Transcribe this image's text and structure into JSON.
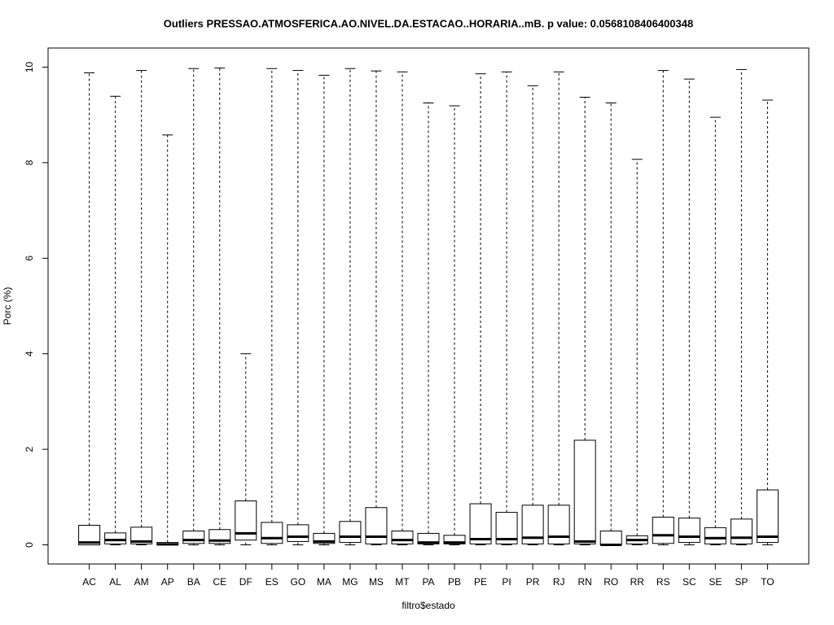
{
  "chart_data": {
    "type": "boxplot",
    "title": "Outliers PRESSAO.ATMOSFERICA.AO.NIVEL.DA.ESTACAO..HORARIA..mB. p value: 0.0568108406400348",
    "x_label": "filtro$estado",
    "y_label": "Porc (%)",
    "categories": [
      "AC",
      "AL",
      "AM",
      "AP",
      "BA",
      "CE",
      "DF",
      "ES",
      "GO",
      "MA",
      "MG",
      "MS",
      "MT",
      "PA",
      "PB",
      "PE",
      "PI",
      "PR",
      "RJ",
      "RN",
      "RO",
      "RR",
      "RS",
      "SC",
      "SE",
      "SP",
      "TO"
    ],
    "boxes": [
      {
        "min": 0,
        "q1": 0,
        "median": 0.05,
        "q3": 0.41,
        "max": 9.88
      },
      {
        "min": 0,
        "q1": 0.02,
        "median": 0.1,
        "q3": 0.25,
        "max": 9.39
      },
      {
        "min": 0,
        "q1": 0.02,
        "median": 0.07,
        "q3": 0.37,
        "max": 9.93
      },
      {
        "min": 0,
        "q1": 0,
        "median": 0.01,
        "q3": 0.05,
        "max": 8.58
      },
      {
        "min": 0,
        "q1": 0.03,
        "median": 0.1,
        "q3": 0.29,
        "max": 9.97
      },
      {
        "min": 0,
        "q1": 0.03,
        "median": 0.09,
        "q3": 0.32,
        "max": 9.98
      },
      {
        "min": 0,
        "q1": 0.1,
        "median": 0.24,
        "q3": 0.92,
        "max": 4.0
      },
      {
        "min": 0,
        "q1": 0.03,
        "median": 0.14,
        "q3": 0.47,
        "max": 9.97
      },
      {
        "min": 0,
        "q1": 0.07,
        "median": 0.17,
        "q3": 0.42,
        "max": 9.93
      },
      {
        "min": 0,
        "q1": 0.03,
        "median": 0.07,
        "q3": 0.24,
        "max": 9.83
      },
      {
        "min": 0,
        "q1": 0.05,
        "median": 0.17,
        "q3": 0.49,
        "max": 9.97
      },
      {
        "min": 0,
        "q1": 0.02,
        "median": 0.17,
        "q3": 0.78,
        "max": 9.92
      },
      {
        "min": 0,
        "q1": 0.02,
        "median": 0.1,
        "q3": 0.29,
        "max": 9.9
      },
      {
        "min": 0,
        "q1": 0.02,
        "median": 0.05,
        "q3": 0.24,
        "max": 9.25
      },
      {
        "min": 0,
        "q1": 0.02,
        "median": 0.05,
        "q3": 0.2,
        "max": 9.19
      },
      {
        "min": 0,
        "q1": 0.02,
        "median": 0.12,
        "q3": 0.86,
        "max": 9.86
      },
      {
        "min": 0,
        "q1": 0.02,
        "median": 0.12,
        "q3": 0.68,
        "max": 9.9
      },
      {
        "min": 0,
        "q1": 0.02,
        "median": 0.15,
        "q3": 0.83,
        "max": 9.61
      },
      {
        "min": 0,
        "q1": 0.02,
        "median": 0.17,
        "q3": 0.83,
        "max": 9.9
      },
      {
        "min": 0,
        "q1": 0.02,
        "median": 0.07,
        "q3": 2.19,
        "max": 9.37
      },
      {
        "min": 0,
        "q1": 0,
        "median": 0,
        "q3": 0.29,
        "max": 9.25
      },
      {
        "min": 0,
        "q1": 0.02,
        "median": 0.1,
        "q3": 0.19,
        "max": 8.07
      },
      {
        "min": 0,
        "q1": 0.03,
        "median": 0.2,
        "q3": 0.58,
        "max": 9.93
      },
      {
        "min": 0,
        "q1": 0.05,
        "median": 0.17,
        "q3": 0.56,
        "max": 9.75
      },
      {
        "min": 0,
        "q1": 0.02,
        "median": 0.14,
        "q3": 0.36,
        "max": 8.95
      },
      {
        "min": 0,
        "q1": 0.02,
        "median": 0.15,
        "q3": 0.54,
        "max": 9.95
      },
      {
        "min": 0,
        "q1": 0.05,
        "median": 0.17,
        "q3": 1.15,
        "max": 9.31
      }
    ],
    "color": "#000000",
    "ylim": [
      -0.4,
      10.4
    ],
    "yticks": [
      0,
      2,
      4,
      6,
      8,
      10
    ]
  }
}
